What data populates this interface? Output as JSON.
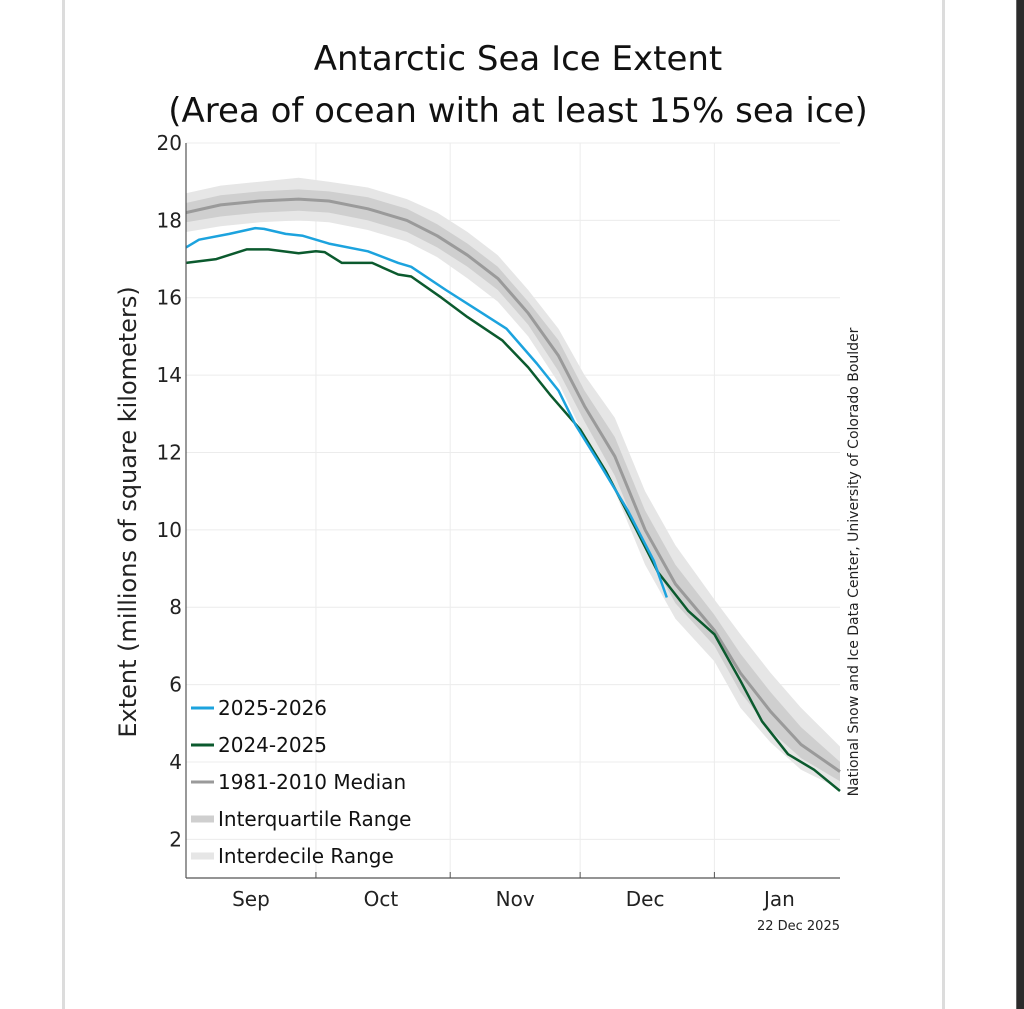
{
  "page": {
    "credit": "National Snow and Ice Data Center, University of Colorado Boulder",
    "date_stamp": "22 Dec 2025"
  },
  "chart_data": {
    "type": "line",
    "title": "Antarctic Sea Ice Extent",
    "subtitle": "(Area of ocean with at least 15% sea ice)",
    "xlabel": "",
    "ylabel": "Extent (millions of square kilometers)",
    "x_units": "days since Sep 1",
    "xlim": [
      0,
      151
    ],
    "ylim": [
      1,
      20
    ],
    "yticks": [
      2,
      4,
      6,
      8,
      10,
      12,
      14,
      16,
      18,
      20
    ],
    "xticks": [
      {
        "label": "Sep",
        "day": 15
      },
      {
        "label": "Oct",
        "day": 45
      },
      {
        "label": "Nov",
        "day": 76
      },
      {
        "label": "Dec",
        "day": 106
      },
      {
        "label": "Jan",
        "day": 137
      }
    ],
    "month_boundaries": [
      0,
      30,
      61,
      91,
      122
    ],
    "grid": true,
    "legend_position": "bottom-left",
    "colors": {
      "current": "#1ca3de",
      "previous": "#0b5a2e",
      "median": "#9a9a9a",
      "interquartile": "#cfcfcf",
      "interdecile": "#e6e6e6"
    },
    "series": [
      {
        "name": "2025-2026",
        "key": "current",
        "x": [
          0,
          3,
          10,
          16,
          18,
          23,
          27,
          33,
          42,
          49,
          52,
          60,
          67,
          74,
          81,
          86,
          90,
          95,
          102,
          108,
          111
        ],
        "values": [
          17.3,
          17.5,
          17.65,
          17.8,
          17.78,
          17.65,
          17.6,
          17.4,
          17.2,
          16.9,
          16.8,
          16.2,
          15.7,
          15.2,
          14.3,
          13.6,
          12.7,
          11.8,
          10.5,
          9.2,
          8.25
        ]
      },
      {
        "name": "2024-2025",
        "key": "previous",
        "x": [
          0,
          7,
          14,
          19,
          26,
          30,
          32,
          36,
          43,
          49,
          52,
          59,
          65,
          73,
          79,
          84,
          91,
          97,
          104,
          109,
          116,
          122,
          128,
          133,
          139,
          145,
          151
        ],
        "values": [
          16.9,
          17.0,
          17.25,
          17.25,
          17.15,
          17.2,
          17.18,
          16.9,
          16.9,
          16.6,
          16.55,
          16.0,
          15.5,
          14.9,
          14.2,
          13.5,
          12.6,
          11.5,
          10.0,
          8.9,
          7.9,
          7.3,
          6.1,
          5.05,
          4.2,
          3.8,
          3.25
        ]
      },
      {
        "name": "1981-2010 Median",
        "key": "median",
        "x": [
          0,
          8,
          17,
          26,
          33,
          42,
          51,
          58,
          65,
          72,
          79,
          86,
          92,
          99,
          106,
          113,
          122,
          128,
          135,
          142,
          151
        ],
        "values": [
          18.2,
          18.4,
          18.5,
          18.55,
          18.5,
          18.3,
          18.0,
          17.6,
          17.1,
          16.5,
          15.6,
          14.5,
          13.2,
          11.9,
          10.0,
          8.6,
          7.4,
          6.3,
          5.3,
          4.45,
          3.75
        ]
      }
    ],
    "ranges": [
      {
        "name": "Interquartile Range",
        "key": "interquartile",
        "x": [
          0,
          8,
          17,
          26,
          33,
          42,
          51,
          58,
          65,
          72,
          79,
          86,
          92,
          99,
          106,
          113,
          122,
          128,
          135,
          142,
          151
        ],
        "lower": [
          17.95,
          18.1,
          18.2,
          18.25,
          18.2,
          18.0,
          17.7,
          17.3,
          16.8,
          16.2,
          15.3,
          14.1,
          12.8,
          11.4,
          9.5,
          8.1,
          7.0,
          5.8,
          4.8,
          4.1,
          3.5
        ],
        "upper": [
          18.45,
          18.65,
          18.75,
          18.8,
          18.75,
          18.6,
          18.3,
          17.9,
          17.4,
          16.8,
          15.9,
          14.9,
          13.6,
          12.4,
          10.5,
          9.1,
          7.8,
          6.8,
          5.8,
          4.9,
          4.0
        ]
      },
      {
        "name": "Interdecile Range",
        "key": "interdecile",
        "x": [
          0,
          8,
          17,
          26,
          33,
          42,
          51,
          58,
          65,
          72,
          79,
          86,
          92,
          99,
          106,
          113,
          122,
          128,
          135,
          142,
          151
        ],
        "lower": [
          17.7,
          17.85,
          17.95,
          18.0,
          17.95,
          17.75,
          17.45,
          17.05,
          16.5,
          15.9,
          15.0,
          13.8,
          12.4,
          11.0,
          9.1,
          7.7,
          6.6,
          5.4,
          4.5,
          3.8,
          3.3
        ],
        "upper": [
          18.7,
          18.9,
          19.0,
          19.1,
          19.0,
          18.85,
          18.55,
          18.2,
          17.7,
          17.1,
          16.2,
          15.2,
          14.0,
          12.9,
          11.0,
          9.6,
          8.2,
          7.3,
          6.3,
          5.4,
          4.4
        ]
      }
    ],
    "legend": [
      {
        "label": "2025-2026",
        "key": "current"
      },
      {
        "label": "2024-2025",
        "key": "previous"
      },
      {
        "label": "1981-2010 Median",
        "key": "median"
      },
      {
        "label": "Interquartile Range",
        "key": "interquartile"
      },
      {
        "label": "Interdecile Range",
        "key": "interdecile"
      }
    ]
  }
}
